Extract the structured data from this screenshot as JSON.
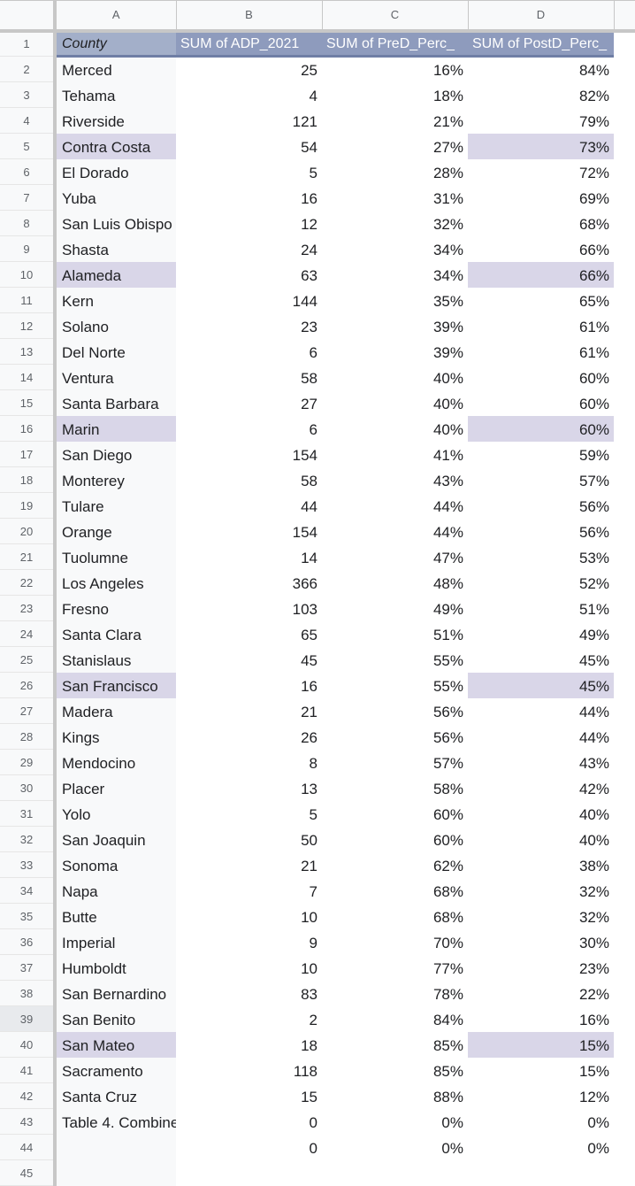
{
  "columns": [
    "A",
    "B",
    "C",
    "D"
  ],
  "header_row": {
    "row_number": "1",
    "a": "County",
    "b": "SUM of ADP_2021",
    "c": "SUM of PreD_Perc_",
    "d": "SUM of PostD_Perc_"
  },
  "rows": [
    {
      "n": "2",
      "a": "Merced",
      "b": "25",
      "c": "16%",
      "d": "84%"
    },
    {
      "n": "3",
      "a": "Tehama",
      "b": "4",
      "c": "18%",
      "d": "82%"
    },
    {
      "n": "4",
      "a": "Riverside",
      "b": "121",
      "c": "21%",
      "d": "79%"
    },
    {
      "n": "5",
      "a": "Contra Costa",
      "b": "54",
      "c": "27%",
      "d": "73%",
      "hl": true
    },
    {
      "n": "6",
      "a": "El Dorado",
      "b": "5",
      "c": "28%",
      "d": "72%"
    },
    {
      "n": "7",
      "a": "Yuba",
      "b": "16",
      "c": "31%",
      "d": "69%"
    },
    {
      "n": "8",
      "a": "San Luis Obispo",
      "b": "12",
      "c": "32%",
      "d": "68%"
    },
    {
      "n": "9",
      "a": "Shasta",
      "b": "24",
      "c": "34%",
      "d": "66%"
    },
    {
      "n": "10",
      "a": "Alameda",
      "b": "63",
      "c": "34%",
      "d": "66%",
      "hl": true
    },
    {
      "n": "11",
      "a": "Kern",
      "b": "144",
      "c": "35%",
      "d": "65%"
    },
    {
      "n": "12",
      "a": "Solano",
      "b": "23",
      "c": "39%",
      "d": "61%"
    },
    {
      "n": "13",
      "a": "Del Norte",
      "b": "6",
      "c": "39%",
      "d": "61%"
    },
    {
      "n": "14",
      "a": "Ventura",
      "b": "58",
      "c": "40%",
      "d": "60%"
    },
    {
      "n": "15",
      "a": "Santa Barbara",
      "b": "27",
      "c": "40%",
      "d": "60%"
    },
    {
      "n": "16",
      "a": "Marin",
      "b": "6",
      "c": "40%",
      "d": "60%",
      "hl": true
    },
    {
      "n": "17",
      "a": "San Diego",
      "b": "154",
      "c": "41%",
      "d": "59%"
    },
    {
      "n": "18",
      "a": "Monterey",
      "b": "58",
      "c": "43%",
      "d": "57%"
    },
    {
      "n": "19",
      "a": "Tulare",
      "b": "44",
      "c": "44%",
      "d": "56%"
    },
    {
      "n": "20",
      "a": "Orange",
      "b": "154",
      "c": "44%",
      "d": "56%"
    },
    {
      "n": "21",
      "a": "Tuolumne",
      "b": "14",
      "c": "47%",
      "d": "53%"
    },
    {
      "n": "22",
      "a": "Los Angeles",
      "b": "366",
      "c": "48%",
      "d": "52%"
    },
    {
      "n": "23",
      "a": "Fresno",
      "b": "103",
      "c": "49%",
      "d": "51%"
    },
    {
      "n": "24",
      "a": "Santa Clara",
      "b": "65",
      "c": "51%",
      "d": "49%"
    },
    {
      "n": "25",
      "a": "Stanislaus",
      "b": "45",
      "c": "55%",
      "d": "45%"
    },
    {
      "n": "26",
      "a": "San Francisco",
      "b": "16",
      "c": "55%",
      "d": "45%",
      "hl": true
    },
    {
      "n": "27",
      "a": "Madera",
      "b": "21",
      "c": "56%",
      "d": "44%"
    },
    {
      "n": "28",
      "a": "Kings",
      "b": "26",
      "c": "56%",
      "d": "44%"
    },
    {
      "n": "29",
      "a": "Mendocino",
      "b": "8",
      "c": "57%",
      "d": "43%"
    },
    {
      "n": "30",
      "a": "Placer",
      "b": "13",
      "c": "58%",
      "d": "42%"
    },
    {
      "n": "31",
      "a": "Yolo",
      "b": "5",
      "c": "60%",
      "d": "40%"
    },
    {
      "n": "32",
      "a": "San Joaquin",
      "b": "50",
      "c": "60%",
      "d": "40%"
    },
    {
      "n": "33",
      "a": "Sonoma",
      "b": "21",
      "c": "62%",
      "d": "38%"
    },
    {
      "n": "34",
      "a": "Napa",
      "b": "7",
      "c": "68%",
      "d": "32%"
    },
    {
      "n": "35",
      "a": "Butte",
      "b": "10",
      "c": "68%",
      "d": "32%"
    },
    {
      "n": "36",
      "a": "Imperial",
      "b": "9",
      "c": "70%",
      "d": "30%"
    },
    {
      "n": "37",
      "a": "Humboldt",
      "b": "10",
      "c": "77%",
      "d": "23%"
    },
    {
      "n": "38",
      "a": "San Bernardino",
      "b": "83",
      "c": "78%",
      "d": "22%"
    },
    {
      "n": "39",
      "a": "San Benito",
      "b": "2",
      "c": "84%",
      "d": "16%",
      "selected": true
    },
    {
      "n": "40",
      "a": "San Mateo",
      "b": "18",
      "c": "85%",
      "d": "15%",
      "hl": true
    },
    {
      "n": "41",
      "a": "Sacramento",
      "b": "118",
      "c": "85%",
      "d": "15%"
    },
    {
      "n": "42",
      "a": "Santa Cruz",
      "b": "15",
      "c": "88%",
      "d": "12%"
    },
    {
      "n": "43",
      "a": "Table 4. Combine",
      "b": "0",
      "c": "0%",
      "d": "0%"
    },
    {
      "n": "44",
      "a": "",
      "b": "0",
      "c": "0%",
      "d": "0%"
    },
    {
      "n": "45",
      "a": "",
      "b": "",
      "c": "",
      "d": "",
      "empty": true
    }
  ],
  "colors": {
    "pivot_header_bg": "#8e9bbd",
    "highlight_bg": "#d9d6e8",
    "row_header_bg": "#f8f9fa"
  }
}
